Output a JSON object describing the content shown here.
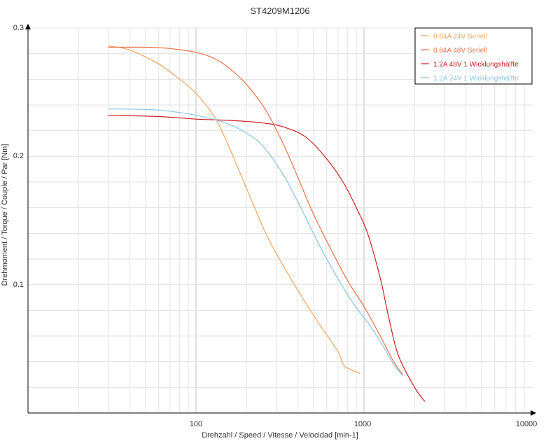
{
  "chart_data": {
    "type": "line",
    "title": "ST4209M1206",
    "xlabel": "Drehzahl / Speed / Vitesse / Velocidad [min-1]",
    "ylabel": "Drehmoment / Torque / Couple / Par [Nm]",
    "x_scale": "log",
    "xlim": [
      10,
      10000
    ],
    "ylim": [
      0,
      0.3
    ],
    "x_tick_labels": [
      "100",
      "1000",
      "10000"
    ],
    "y_tick_labels": [
      "0.1",
      "0.2",
      "0.3"
    ],
    "grid": true,
    "legend_position": "top-right",
    "series": [
      {
        "name": "0.84A  24V  Seriell",
        "color": "#f4a460",
        "x": [
          30,
          40,
          60,
          80,
          100,
          130,
          160,
          200,
          260,
          330,
          420,
          550,
          700,
          760,
          900,
          950
        ],
        "y": [
          0.286,
          0.283,
          0.272,
          0.26,
          0.249,
          0.23,
          0.205,
          0.175,
          0.14,
          0.115,
          0.092,
          0.068,
          0.048,
          0.037,
          0.032,
          0.031
        ]
      },
      {
        "name": "0.84A  48V  Seriell",
        "color": "#e8704a",
        "x": [
          30,
          50,
          70,
          100,
          130,
          160,
          200,
          260,
          330,
          400,
          500,
          650,
          800,
          1000,
          1250,
          1500,
          1700
        ],
        "y": [
          0.285,
          0.285,
          0.284,
          0.281,
          0.276,
          0.268,
          0.256,
          0.236,
          0.21,
          0.185,
          0.155,
          0.125,
          0.103,
          0.083,
          0.06,
          0.04,
          0.03
        ]
      },
      {
        "name": "1.2A  48V  1 Wicklungshälfte",
        "color": "#cc2020",
        "x": [
          30,
          60,
          100,
          160,
          250,
          330,
          450,
          600,
          750,
          900,
          1050,
          1250,
          1400,
          1600,
          2000,
          2300
        ],
        "y": [
          0.232,
          0.231,
          0.229,
          0.228,
          0.226,
          0.223,
          0.215,
          0.198,
          0.18,
          0.16,
          0.14,
          0.105,
          0.075,
          0.045,
          0.02,
          0.009
        ]
      },
      {
        "name": "1.2A  24V  1 Wicklungshälfte",
        "color": "#87c5e8",
        "x": [
          30,
          60,
          100,
          150,
          200,
          250,
          330,
          420,
          500,
          600,
          750,
          900,
          1100,
          1300,
          1500,
          1700
        ],
        "y": [
          0.237,
          0.236,
          0.232,
          0.226,
          0.218,
          0.208,
          0.186,
          0.16,
          0.14,
          0.12,
          0.098,
          0.082,
          0.067,
          0.052,
          0.038,
          0.029
        ]
      }
    ]
  }
}
